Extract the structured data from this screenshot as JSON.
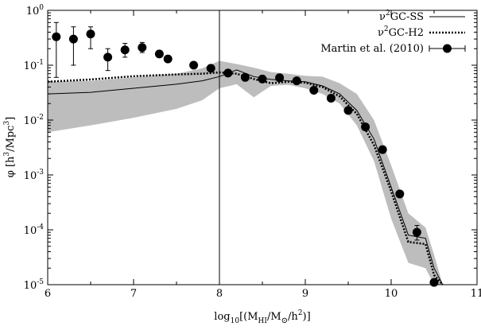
{
  "chart_data": {
    "type": "line",
    "xlabel": "log10[(MHI/M⊙/h^2)]",
    "xlabel_parts": {
      "prefix": "log",
      "prefix_sub": "10",
      "open": "[(M",
      "m_sub": "HI",
      "slash": "/M",
      "sun": "⊙",
      "close": "/h",
      "h_sup": "2",
      "end": ")]"
    },
    "ylabel": "φ [h^3/Mpc^3]",
    "ylabel_parts": {
      "a": "φ [h",
      "a_sup": "3",
      "b": "/Mpc",
      "b_sup": "3",
      "c": "]"
    },
    "xlim": [
      6,
      11
    ],
    "ylim": [
      1e-05,
      1
    ],
    "yscale": "log",
    "grid": false,
    "legend_position": "top-right",
    "xticks": [
      "6",
      "7",
      "8",
      "9",
      "10",
      "11"
    ],
    "yticks": [
      {
        "base": "10",
        "exp": "0"
      },
      {
        "base": "10",
        "exp": "-1"
      },
      {
        "base": "10",
        "exp": "-2"
      },
      {
        "base": "10",
        "exp": "-3"
      },
      {
        "base": "10",
        "exp": "-4"
      },
      {
        "base": "10",
        "exp": "-5"
      }
    ],
    "vertical_line_x": 8.0,
    "series": [
      {
        "name": "ν2GC-SS",
        "name_parts": {
          "a": "ν",
          "sup": "2",
          "b": "GC-SS"
        },
        "style": "solid",
        "x": [
          6.0,
          6.5,
          7.0,
          7.5,
          7.8,
          8.0,
          8.2,
          8.4,
          8.6,
          8.8,
          9.0,
          9.2,
          9.4,
          9.6,
          9.8,
          10.0,
          10.2,
          10.4,
          10.5,
          10.6
        ],
        "y": [
          0.03,
          0.032,
          0.038,
          0.045,
          0.052,
          0.062,
          0.082,
          0.062,
          0.055,
          0.052,
          0.05,
          0.042,
          0.03,
          0.015,
          0.0045,
          0.0006,
          8e-05,
          7e-05,
          2e-05,
          1e-05
        ]
      },
      {
        "name": "ν2GC-H2",
        "name_parts": {
          "a": "ν",
          "sup": "2",
          "b": "GC-H2"
        },
        "style": "dotted",
        "x": [
          6.0,
          6.5,
          7.0,
          7.5,
          7.8,
          8.0,
          8.2,
          8.4,
          8.6,
          8.8,
          9.0,
          9.2,
          9.4,
          9.6,
          9.8,
          10.0,
          10.2,
          10.4,
          10.5,
          10.6
        ],
        "y": [
          0.05,
          0.055,
          0.063,
          0.068,
          0.07,
          0.074,
          0.07,
          0.056,
          0.047,
          0.05,
          0.048,
          0.04,
          0.027,
          0.013,
          0.0035,
          0.0005,
          6e-05,
          5.5e-05,
          1.5e-05,
          1e-05
        ]
      },
      {
        "name": "Martin et al. (2010)",
        "style": "points_with_errorbars",
        "x": [
          6.1,
          6.3,
          6.5,
          6.7,
          6.9,
          7.1,
          7.3,
          7.4,
          7.7,
          7.9,
          8.1,
          8.3,
          8.5,
          8.7,
          8.9,
          9.1,
          9.3,
          9.5,
          9.7,
          9.9,
          10.1,
          10.3,
          10.5
        ],
        "y": [
          0.33,
          0.3,
          0.37,
          0.14,
          0.19,
          0.21,
          0.16,
          0.13,
          0.1,
          0.088,
          0.072,
          0.06,
          0.056,
          0.059,
          0.052,
          0.035,
          0.025,
          0.015,
          0.0075,
          0.0029,
          0.00045,
          9e-05,
          1.1e-05
        ],
        "yerr_low": [
          0.06,
          0.1,
          0.2,
          0.08,
          0.14,
          0.17,
          0.15,
          0.12,
          0.095,
          0.083,
          0.068,
          0.057,
          0.053,
          0.056,
          0.049,
          0.033,
          0.024,
          0.0142,
          0.0071,
          0.00275,
          0.00042,
          6.5e-05,
          1.05e-05
        ],
        "yerr_high": [
          0.6,
          0.5,
          0.5,
          0.2,
          0.25,
          0.26,
          0.17,
          0.14,
          0.105,
          0.093,
          0.076,
          0.063,
          0.059,
          0.062,
          0.055,
          0.037,
          0.026,
          0.0158,
          0.0079,
          0.00305,
          0.00048,
          0.00012,
          1.15e-05
        ]
      }
    ],
    "band": {
      "color": "#bdbdbd",
      "x": [
        6.0,
        6.5,
        7.0,
        7.5,
        7.8,
        8.0,
        8.2,
        8.4,
        8.6,
        8.8,
        9.0,
        9.2,
        9.4,
        9.6,
        9.8,
        10.0,
        10.2,
        10.4,
        10.5,
        10.6
      ],
      "y_low": [
        0.006,
        0.008,
        0.011,
        0.016,
        0.023,
        0.038,
        0.045,
        0.026,
        0.042,
        0.044,
        0.038,
        0.03,
        0.02,
        0.008,
        0.0018,
        0.00016,
        2.5e-05,
        2e-05,
        1e-05,
        1e-05
      ],
      "y_high": [
        0.05,
        0.052,
        0.06,
        0.07,
        0.088,
        0.12,
        0.105,
        0.09,
        0.075,
        0.07,
        0.064,
        0.062,
        0.047,
        0.03,
        0.01,
        0.0015,
        0.0002,
        0.00011,
        3.5e-05,
        1e-05
      ]
    }
  }
}
